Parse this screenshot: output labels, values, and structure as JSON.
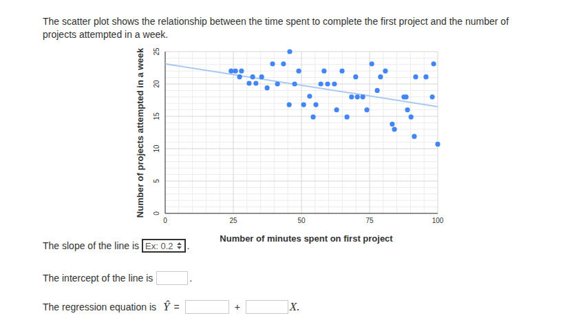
{
  "intro": "The scatter plot shows the relationship between the time spent to complete the first project and the number of projects attempted in a week.",
  "chart_data": {
    "type": "scatter",
    "x_label": "Number of minutes spent on first project",
    "y_label": "Number of projects attempted in a week",
    "xlim": [
      0,
      100
    ],
    "ylim": [
      0,
      25
    ],
    "xticks": [
      0,
      25,
      50,
      75,
      100
    ],
    "yticks": [
      0,
      5,
      10,
      15,
      20,
      25
    ],
    "grid": true,
    "series": [
      {
        "type": "scatter",
        "marker": "circle",
        "color": "#4285f4",
        "x": [
          24.2,
          25.8,
          28.0,
          27.3,
          32.1,
          35.4,
          30.8,
          33.3,
          37.4,
          39.4,
          43.4,
          45.7,
          41.2,
          45.5,
          47.5,
          49.0,
          50.8,
          53.0,
          55.3,
          54.3,
          57.1,
          59.6,
          62.1,
          58.3,
          64.9,
          62.9,
          66.7,
          69.9,
          68.4,
          70.5,
          72.5,
          74.0,
          75.8,
          77.8,
          79.0,
          80.8,
          87.6,
          88.4,
          88.9,
          90.2,
          83.3,
          84.1,
          91.9,
          95.7,
          91.4,
          98.0,
          98.5,
          100.0
        ],
        "values": [
          22.0,
          22.0,
          22.0,
          21.1,
          21.1,
          21.1,
          20.1,
          20.1,
          19.4,
          23.1,
          23.1,
          25.0,
          20.0,
          16.8,
          20.0,
          22.0,
          16.8,
          18.1,
          16.8,
          14.9,
          20.0,
          20.0,
          20.0,
          22.0,
          22.0,
          16.0,
          14.9,
          21.1,
          18.0,
          18.0,
          18.0,
          16.0,
          23.1,
          19.0,
          21.1,
          22.0,
          18.0,
          18.0,
          16.0,
          14.9,
          13.8,
          13.0,
          21.1,
          21.1,
          11.9,
          18.0,
          23.1,
          10.7
        ]
      },
      {
        "type": "line",
        "marker": "none",
        "line_style": "solid",
        "color": "#a9c9f2",
        "x": [
          0,
          100
        ],
        "values": [
          23.1,
          16.5
        ]
      }
    ]
  },
  "questions": [
    {
      "text": "The slope of the line is",
      "placeholder": "Ex: 0.2",
      "suffix": "."
    },
    {
      "text": "The intercept of the line is",
      "suffix": "."
    },
    {
      "text": "The regression equation is",
      "symbol": "Ŷ",
      "equals": "=",
      "plus": "+",
      "suffix": "X."
    }
  ]
}
